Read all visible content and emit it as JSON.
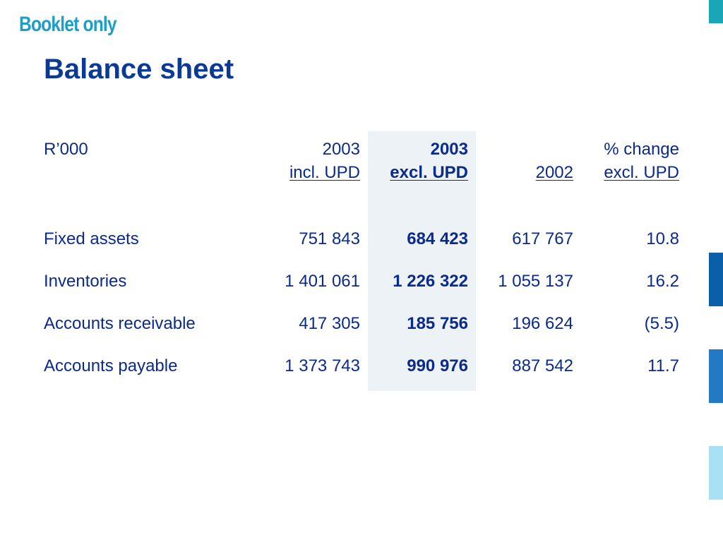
{
  "header": {
    "booklet_note": "Booklet only",
    "title": "Balance sheet"
  },
  "table": {
    "unit_label": "R’000",
    "columns": [
      {
        "line1": "2003",
        "line2": "incl. UPD"
      },
      {
        "line1": "2003",
        "line2": "excl. UPD"
      },
      {
        "line1": "",
        "line2": "2002"
      },
      {
        "line1": "% change",
        "line2": "excl. UPD"
      }
    ],
    "rows": [
      {
        "label": "Fixed assets",
        "values": [
          "751 843",
          "684 423",
          "617 767",
          "10.8"
        ]
      },
      {
        "label": "Inventories",
        "values": [
          "1 401 061",
          "1 226 322",
          "1 055 137",
          "16.2"
        ]
      },
      {
        "label": "Accounts receivable",
        "values": [
          "417 305",
          "185 756",
          "196 624",
          "(5.5)"
        ]
      },
      {
        "label": "Accounts payable",
        "values": [
          "1 373 743",
          "990 976",
          "887 542",
          "11.7"
        ]
      }
    ]
  },
  "colors": {
    "title": "#0b3a96",
    "booklet_note": "#1a9fc9",
    "text": "#0a2a8c",
    "highlight_column": "#edf2f6",
    "side_bars": [
      "#1aa6b6",
      "#0a5fa8",
      "#2479c4",
      "#a8e0f4"
    ]
  }
}
